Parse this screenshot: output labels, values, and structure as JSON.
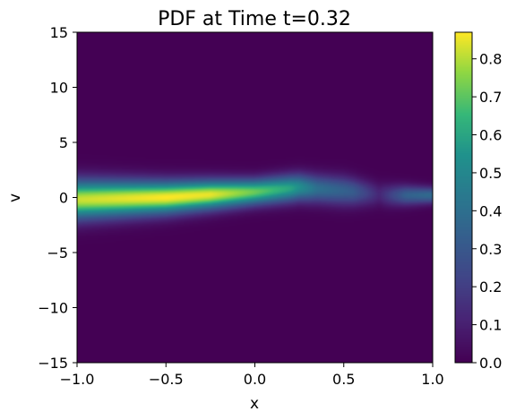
{
  "chart_data": {
    "type": "heatmap",
    "title": "PDF at Time t=0.32",
    "xlabel": "x",
    "ylabel": "v",
    "xlim": [
      -1.0,
      1.0
    ],
    "ylim": [
      -15,
      15
    ],
    "x_ticks": [
      "−1.0",
      "−0.5",
      "0.0",
      "0.5",
      "1.0"
    ],
    "x_tick_values": [
      -1.0,
      -0.5,
      0.0,
      0.5,
      1.0
    ],
    "y_ticks": [
      "−15",
      "−10",
      "−5",
      "0",
      "5",
      "10",
      "15"
    ],
    "y_tick_values": [
      -15,
      -10,
      -5,
      0,
      5,
      10,
      15
    ],
    "colormap": "viridis",
    "colorbar": {
      "min": 0.0,
      "max": 0.87,
      "ticks": [
        "0.0",
        "0.1",
        "0.2",
        "0.3",
        "0.4",
        "0.5",
        "0.6",
        "0.7",
        "0.8"
      ],
      "tick_values": [
        0.0,
        0.1,
        0.2,
        0.3,
        0.4,
        0.5,
        0.6,
        0.7,
        0.8
      ]
    },
    "grid": false,
    "ridge_center_v": [
      {
        "x": -1.0,
        "v": -0.2
      },
      {
        "x": -0.5,
        "v": 0.0
      },
      {
        "x": 0.0,
        "v": 0.5
      },
      {
        "x": 0.25,
        "v": 0.9
      },
      {
        "x": 0.5,
        "v": 0.6
      },
      {
        "x": 0.75,
        "v": 0.2
      },
      {
        "x": 1.0,
        "v": 0.2
      }
    ],
    "ridge_peak_value": [
      {
        "x": -1.0,
        "value": 0.82
      },
      {
        "x": -0.5,
        "value": 0.87
      },
      {
        "x": -0.25,
        "value": 0.85
      },
      {
        "x": 0.0,
        "value": 0.72
      },
      {
        "x": 0.2,
        "value": 0.6
      },
      {
        "x": 0.35,
        "value": 0.4
      },
      {
        "x": 0.55,
        "value": 0.32
      },
      {
        "x": 0.7,
        "value": 0.12
      },
      {
        "x": 0.85,
        "value": 0.34
      },
      {
        "x": 1.0,
        "value": 0.38
      }
    ],
    "ridge_half_width_v": [
      {
        "x": -1.0,
        "w": 1.2
      },
      {
        "x": -0.5,
        "w": 1.0
      },
      {
        "x": 0.0,
        "w": 0.8
      },
      {
        "x": 0.5,
        "w": 0.9
      },
      {
        "x": 1.0,
        "w": 0.5
      }
    ]
  }
}
